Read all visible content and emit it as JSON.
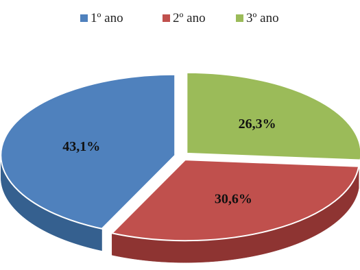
{
  "chart_data": {
    "type": "pie",
    "style": "3d-exploded",
    "title": "",
    "categories": [
      "1º ano",
      "2º ano",
      "3º ano"
    ],
    "values": [
      43.1,
      30.6,
      26.3
    ],
    "data_labels": [
      "43,1%",
      "30,6%",
      "26,3%"
    ],
    "colors": [
      "#4f81bd",
      "#c0504d",
      "#9bbb59"
    ],
    "side_colors": [
      "#35608f",
      "#8e3432",
      "#6d8a34"
    ],
    "legend": {
      "position": "top",
      "entries": [
        "1º ano",
        "2º ano",
        "3º ano"
      ]
    }
  }
}
